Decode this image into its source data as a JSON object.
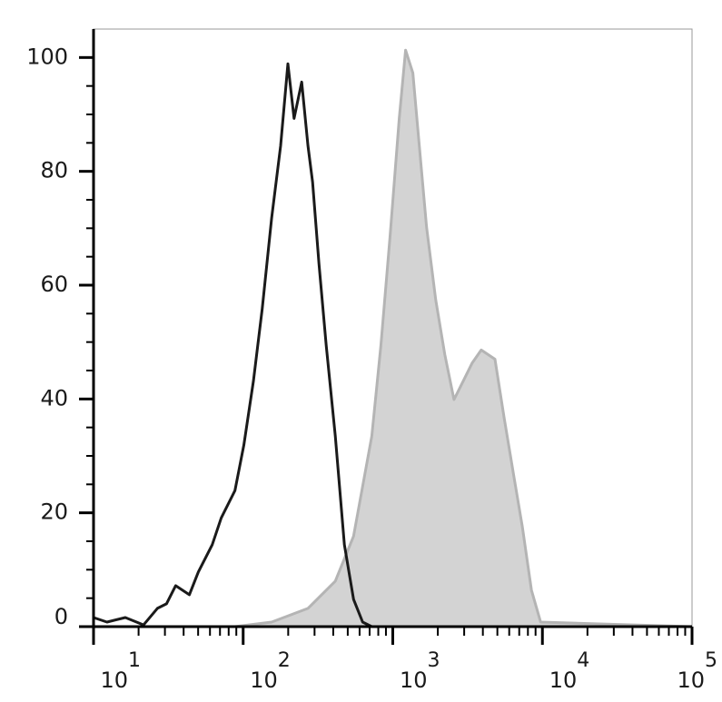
{
  "chart_data": {
    "type": "histogram-overlay",
    "xscale": "log",
    "xlim": [
      10,
      100000
    ],
    "ylim": [
      0,
      105
    ],
    "xticks": [
      {
        "value": 10,
        "label": "10",
        "exponent": "1"
      },
      {
        "value": 100,
        "label": "10",
        "exponent": "2"
      },
      {
        "value": 1000,
        "label": "10",
        "exponent": "3"
      },
      {
        "value": 10000,
        "label": "10",
        "exponent": "4"
      },
      {
        "value": 100000,
        "label": "10",
        "exponent": "5"
      }
    ],
    "xminorticks": [
      20,
      30,
      40,
      50,
      60,
      70,
      80,
      90,
      200,
      300,
      400,
      500,
      600,
      700,
      800,
      900,
      2000,
      3000,
      4000,
      5000,
      6000,
      7000,
      8000,
      9000,
      20000,
      30000,
      40000,
      50000,
      60000,
      70000,
      80000,
      90000
    ],
    "yticks": [
      0,
      20,
      40,
      60,
      80,
      100
    ],
    "yminorticks": [
      5,
      10,
      15,
      25,
      30,
      35,
      45,
      50,
      55,
      65,
      70,
      75,
      85,
      90,
      95
    ],
    "series": [
      {
        "color": "#b4b4b4",
        "fill": "#d3d3d3",
        "x": [
          10,
          88.1,
          155,
          271,
          413,
          547,
          724,
          833,
          959,
          1104,
          1217,
          1362,
          1503,
          1682,
          1936,
          2228,
          2564,
          2951,
          3388,
          3899,
          4819,
          5546,
          6383,
          7345,
          8453,
          9727,
          98600
        ],
        "values": [
          0,
          0,
          0.8,
          3.2,
          8.0,
          15.9,
          33.5,
          49.4,
          68.6,
          89.3,
          101.3,
          97.3,
          84.5,
          70.2,
          57.4,
          47.8,
          39.9,
          43.1,
          46.3,
          48.6,
          47.0,
          36.7,
          27.1,
          17.5,
          6.4,
          0.8,
          0
        ]
      },
      {
        "color": "#1a1a1a",
        "fill": null,
        "x": [
          10,
          12.3,
          16.3,
          21.6,
          26.7,
          30.7,
          35.4,
          43.7,
          50.2,
          62.1,
          71.4,
          88.1,
          101,
          117,
          134,
          155,
          178,
          199,
          219,
          246,
          271,
          291,
          321,
          359,
          413,
          475,
          547,
          629,
          724,
          98600
        ],
        "values": [
          1.6,
          0.8,
          1.6,
          0.3,
          3.2,
          4.0,
          7.2,
          5.6,
          9.6,
          14.4,
          19.1,
          23.9,
          31.9,
          43.1,
          55.8,
          71.8,
          84.5,
          98.9,
          89.3,
          95.7,
          84.5,
          78.1,
          63.8,
          49.4,
          33.5,
          14.4,
          4.8,
          0.8,
          0,
          0
        ]
      }
    ]
  }
}
